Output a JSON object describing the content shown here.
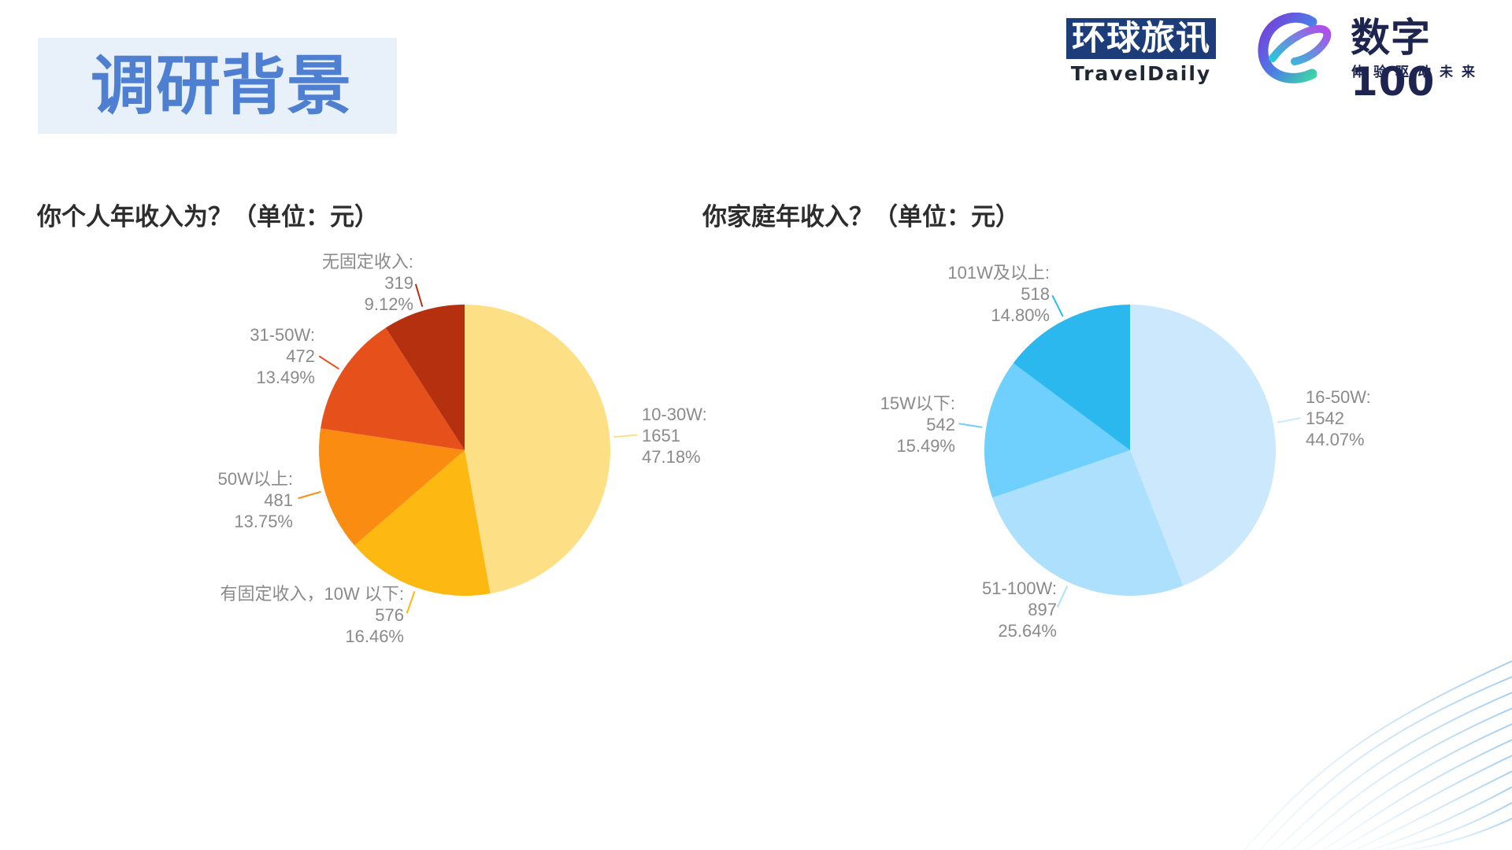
{
  "header": {
    "title": "调研背景"
  },
  "logos": {
    "travel_cn": "环球旅讯",
    "travel_en": "TravelDaily",
    "digital_main": "数字100",
    "digital_sub": "体验驱动未来"
  },
  "chart_data": [
    {
      "type": "pie",
      "title": "你个人年收入为？（单位：元）",
      "categories": [
        "10-30W:",
        "有固定收入，10W 以下:",
        "50W以上:",
        "31-50W:",
        "无固定收入:"
      ],
      "values": [
        1651,
        576,
        481,
        472,
        319
      ],
      "percent_labels": [
        "47.18%",
        "16.46%",
        "13.75%",
        "13.49%",
        "9.12%"
      ],
      "colors": [
        "#fddf85",
        "#fdb812",
        "#fb8c12",
        "#e6511b",
        "#b5300f"
      ]
    },
    {
      "type": "pie",
      "title": "你家庭年收入？（单位：元）",
      "categories": [
        "16-50W:",
        "51-100W:",
        "15W以下:",
        "101W及以上:"
      ],
      "values": [
        1542,
        897,
        542,
        518
      ],
      "percent_labels": [
        "44.07%",
        "25.64%",
        "15.49%",
        "14.80%"
      ],
      "colors": [
        "#cbe8fc",
        "#ade0fd",
        "#6fcffd",
        "#2ab8ee"
      ]
    }
  ]
}
